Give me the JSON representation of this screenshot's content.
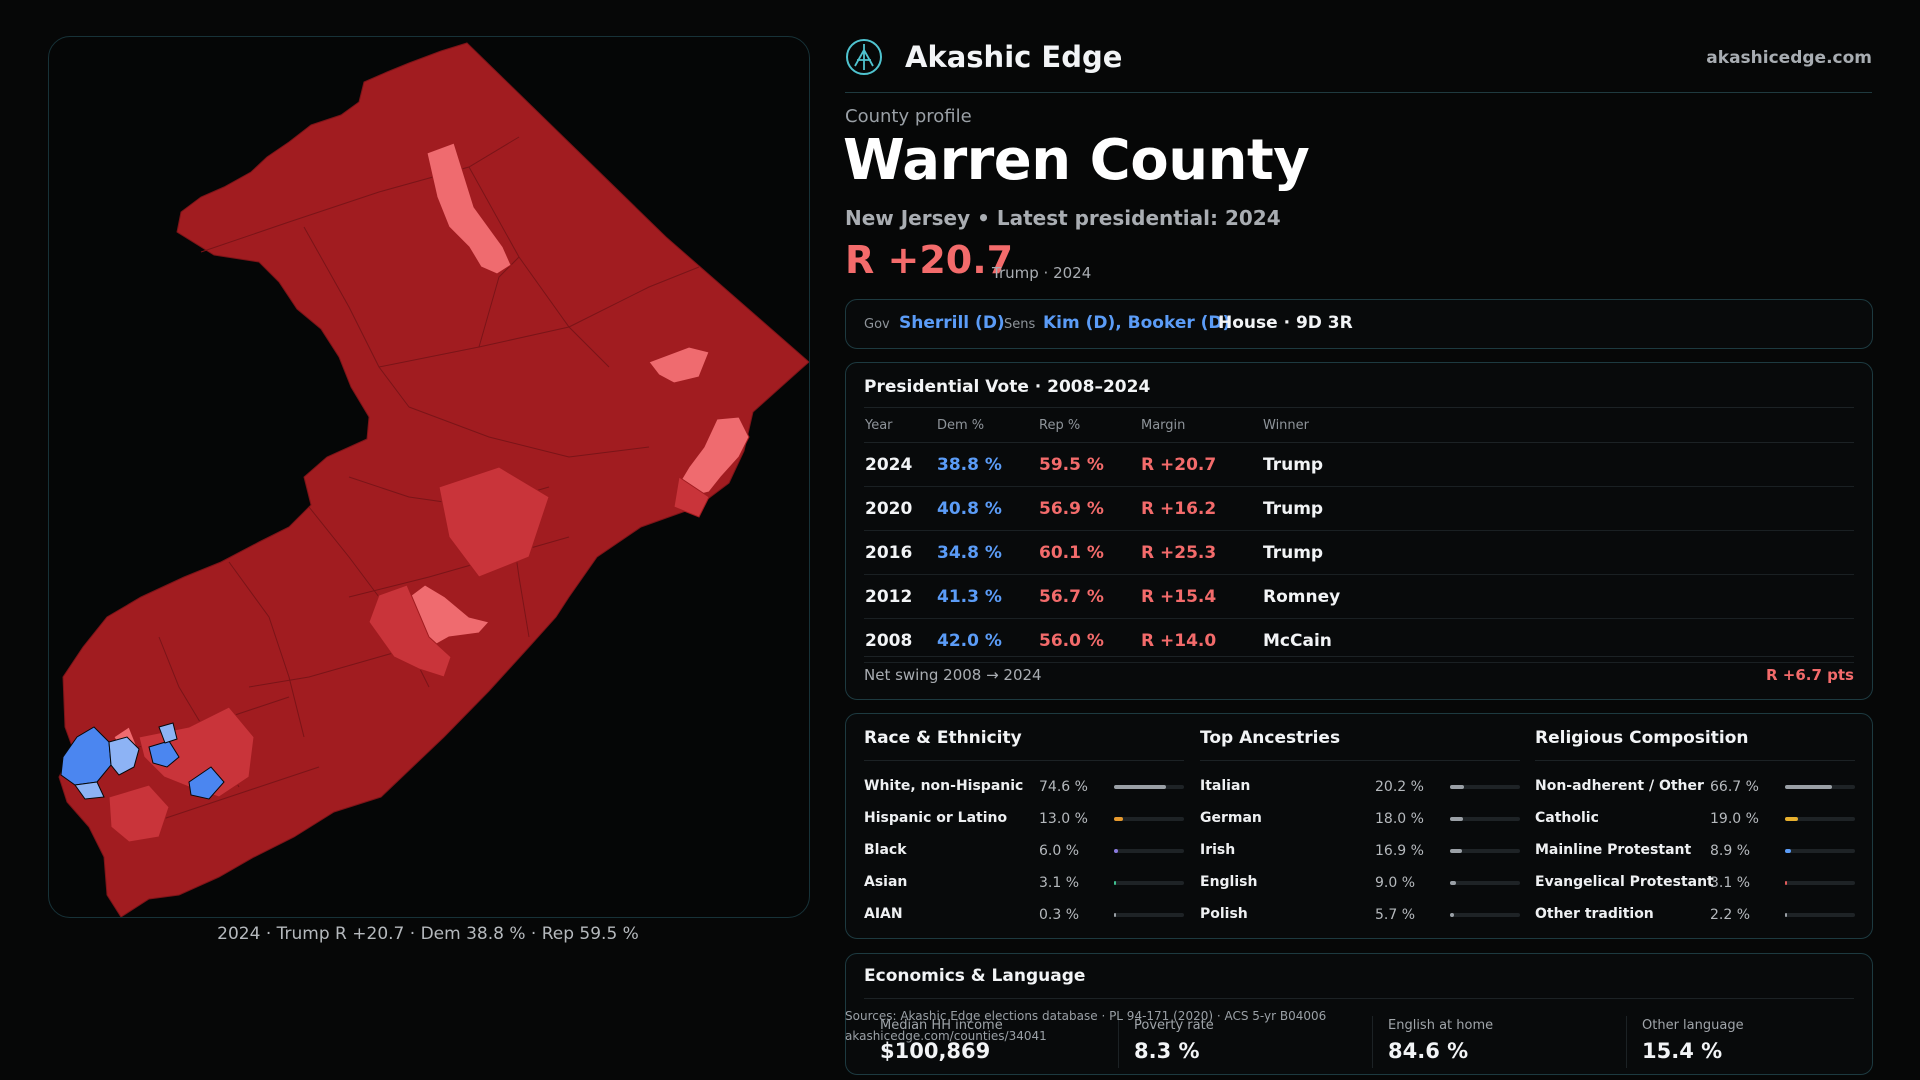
{
  "brand": {
    "name": "Akashic Edge",
    "url": "akashicedge.com"
  },
  "profile": {
    "eyebrow": "County profile",
    "title": "Warren County",
    "subtitle": "New Jersey • Latest presidential: 2024",
    "margin": "R +20.7",
    "margin_note": "Trump · 2024"
  },
  "officials": {
    "gov_label": "Gov",
    "gov": "Sherrill (D)",
    "sens_label": "Sens",
    "sens": "Kim (D), Booker (D)",
    "house": "House · 9D 3R"
  },
  "presidential": {
    "title": "Presidential Vote · 2008–2024",
    "headers": [
      "Year",
      "Dem %",
      "Rep %",
      "Margin",
      "Winner"
    ],
    "rows": [
      {
        "year": "2024",
        "dem": "38.8 %",
        "rep": "59.5 %",
        "margin": "R +20.7",
        "winner": "Trump"
      },
      {
        "year": "2020",
        "dem": "40.8 %",
        "rep": "56.9 %",
        "margin": "R +16.2",
        "winner": "Trump"
      },
      {
        "year": "2016",
        "dem": "34.8 %",
        "rep": "60.1 %",
        "margin": "R +25.3",
        "winner": "Trump"
      },
      {
        "year": "2012",
        "dem": "41.3 %",
        "rep": "56.7 %",
        "margin": "R +15.4",
        "winner": "Romney"
      },
      {
        "year": "2008",
        "dem": "42.0 %",
        "rep": "56.0 %",
        "margin": "R +14.0",
        "winner": "McCain"
      }
    ],
    "swing_label": "Net swing 2008 → 2024",
    "swing_value": "R +6.7 pts"
  },
  "race": {
    "title": "Race & Ethnicity",
    "bar_color": "#8a9096",
    "items": [
      {
        "name": "White, non-Hispanic",
        "pct": "74.6 %",
        "value": 74.6,
        "color": "#9aa0a6"
      },
      {
        "name": "Hispanic or Latino",
        "pct": "13.0 %",
        "value": 13.0,
        "color": "#e79a2e"
      },
      {
        "name": "Black",
        "pct": "6.0 %",
        "value": 6.0,
        "color": "#8b7be0"
      },
      {
        "name": "Asian",
        "pct": "3.1 %",
        "value": 3.1,
        "color": "#3fbf8f"
      },
      {
        "name": "AIAN",
        "pct": "0.3 %",
        "value": 0.3,
        "color": "#9aa0a6"
      }
    ]
  },
  "ancestry": {
    "title": "Top Ancestries",
    "items": [
      {
        "name": "Italian",
        "pct": "20.2 %",
        "value": 20.2,
        "color": "#9aa0a6"
      },
      {
        "name": "German",
        "pct": "18.0 %",
        "value": 18.0,
        "color": "#9aa0a6"
      },
      {
        "name": "Irish",
        "pct": "16.9 %",
        "value": 16.9,
        "color": "#9aa0a6"
      },
      {
        "name": "English",
        "pct": "9.0 %",
        "value": 9.0,
        "color": "#9aa0a6"
      },
      {
        "name": "Polish",
        "pct": "5.7 %",
        "value": 5.7,
        "color": "#9aa0a6"
      }
    ]
  },
  "religion": {
    "title": "Religious Composition",
    "items": [
      {
        "name": "Non-adherent / Other",
        "pct": "66.7 %",
        "value": 66.7,
        "color": "#9aa0a6"
      },
      {
        "name": "Catholic",
        "pct": "19.0 %",
        "value": 19.0,
        "color": "#e7b02e"
      },
      {
        "name": "Mainline Protestant",
        "pct": "8.9 %",
        "value": 8.9,
        "color": "#5b9cf7"
      },
      {
        "name": "Evangelical Protestant",
        "pct": "3.1 %",
        "value": 3.1,
        "color": "#e05a5a"
      },
      {
        "name": "Other tradition",
        "pct": "2.2 %",
        "value": 2.2,
        "color": "#9aa0a6"
      }
    ]
  },
  "economics": {
    "title": "Economics & Language",
    "metrics": [
      {
        "label": "Median HH income",
        "value": "$100,869"
      },
      {
        "label": "Poverty rate",
        "value": "8.3 %"
      },
      {
        "label": "English at home",
        "value": "84.6 %"
      },
      {
        "label": "Other language",
        "value": "15.4 %"
      }
    ]
  },
  "sources": {
    "line1": "Sources: Akashic Edge elections database · PL 94-171 (2020) · ACS 5-yr B04006",
    "line2": "akashicedge.com/counties/34041"
  },
  "map": {
    "caption": "2024 · Trump R +20.7 · Dem 38.8 % · Rep 59.5 %",
    "base_color": "#a11c20",
    "light_red": "#ef6b6f",
    "mid_red": "#c9343a",
    "blue": "#4b86f0",
    "light_blue": "#8db3f5",
    "border_color": "#06080a"
  }
}
